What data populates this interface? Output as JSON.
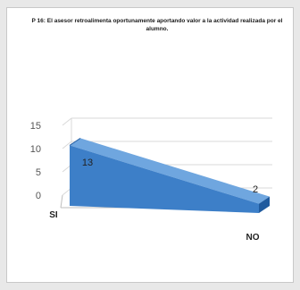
{
  "chart_data": {
    "type": "area",
    "title": "P 16: El asesor retroalimenta oportunamente aportando valor a la actividad realizada por el alumno.",
    "categories": [
      "SI",
      "NO"
    ],
    "values": [
      13,
      2
    ],
    "data_labels": [
      "13",
      "2"
    ],
    "yticks": [
      "0",
      "5",
      "10",
      "15"
    ],
    "ylim": [
      0,
      15
    ],
    "grid": true,
    "style": "3d",
    "colors": {
      "front": "#3d7fc8",
      "top": "#6fa6df",
      "side": "#1f5a9e",
      "grid": "#d9d9d9"
    }
  }
}
